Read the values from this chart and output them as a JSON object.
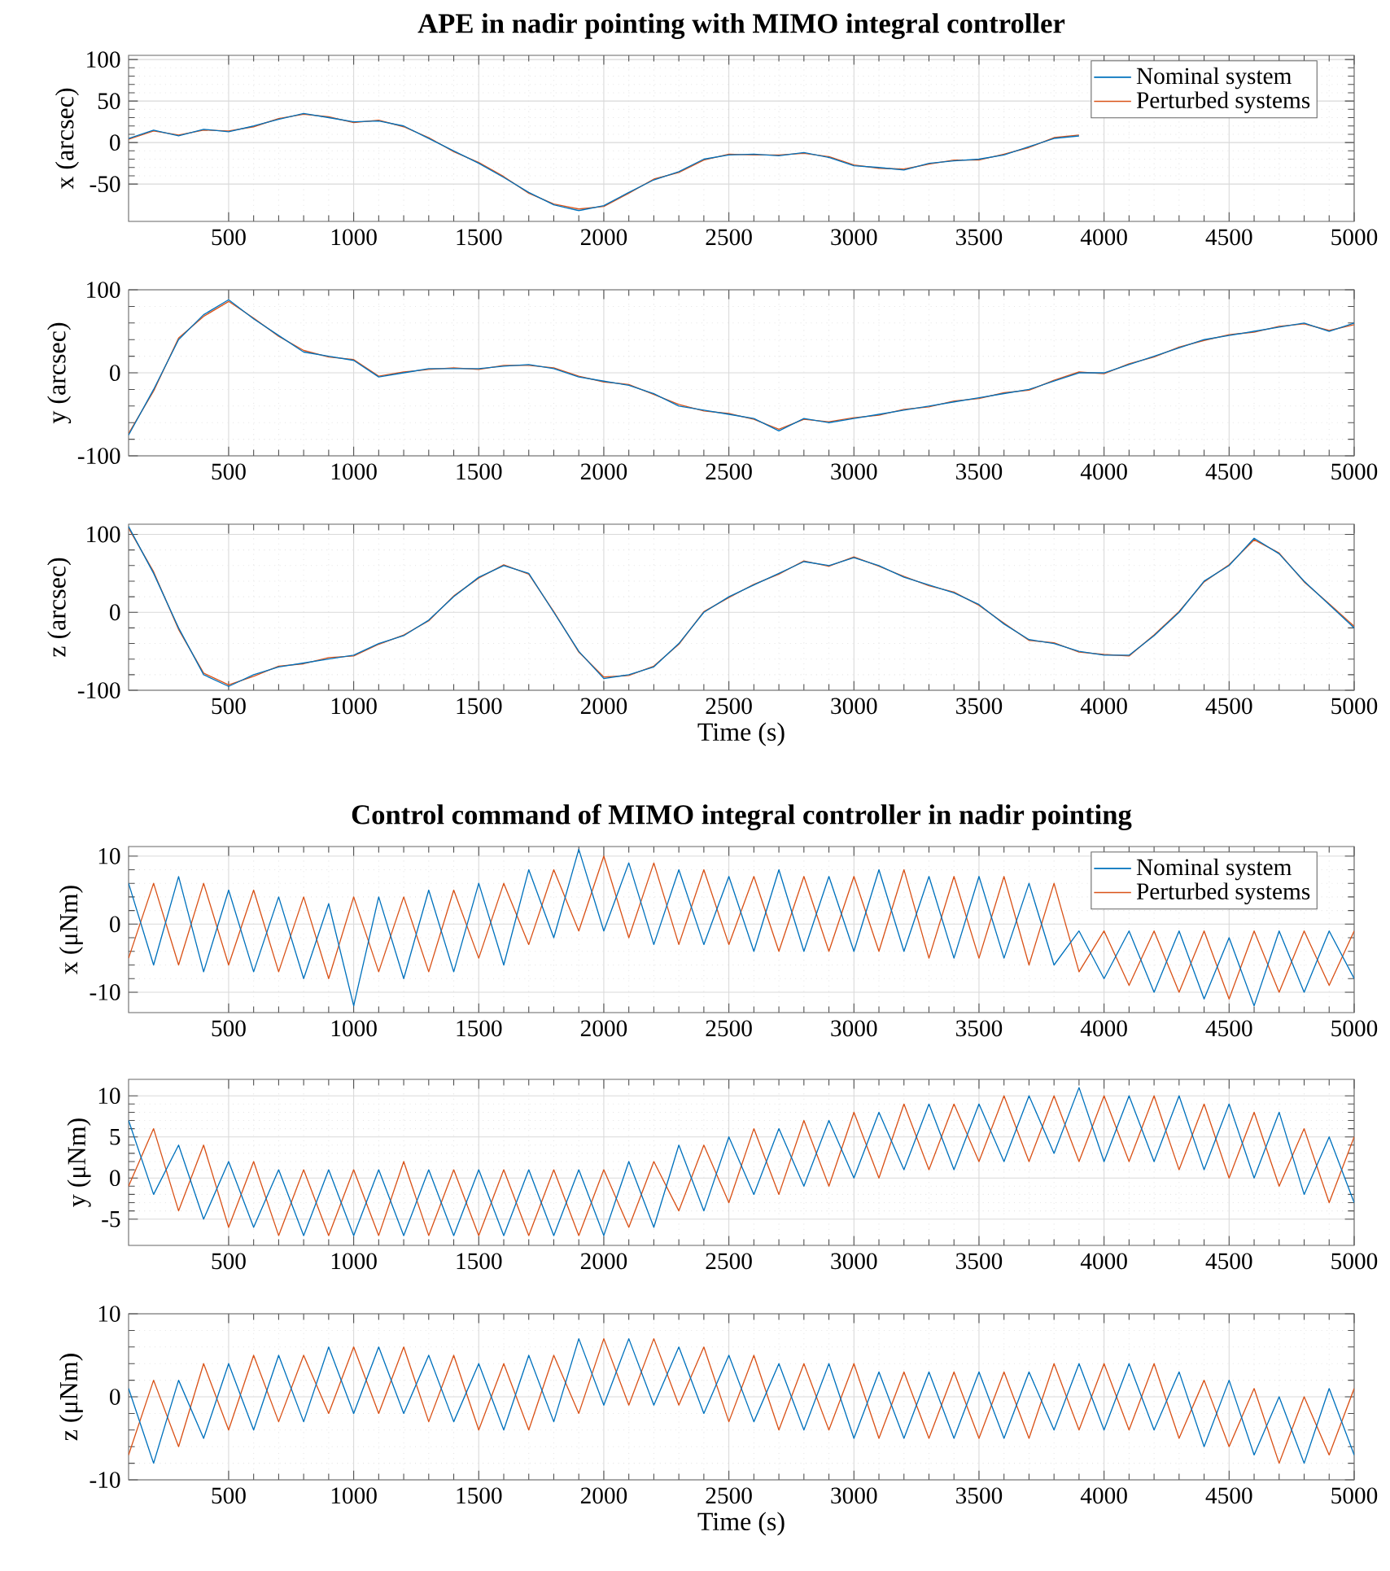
{
  "chart_data": [
    {
      "type": "line",
      "title": "APE in nadir pointing with MIMO integral controller",
      "ylabel": "x (arcsec)",
      "x": [
        100,
        200,
        300,
        400,
        500,
        600,
        700,
        800,
        900,
        1000,
        1100,
        1200,
        1300,
        1400,
        1500,
        1600,
        1700,
        1800,
        1900,
        2000,
        2100,
        2200,
        2300,
        2400,
        2500,
        2600,
        2700,
        2800,
        2900,
        3000,
        3100,
        3200,
        3300,
        3400,
        3500,
        3600,
        3700,
        3800,
        3900
      ],
      "xlim": [
        100,
        5000
      ],
      "ylim": [
        -95,
        105
      ],
      "xticks": [
        500,
        1000,
        1500,
        2000,
        2500,
        3000,
        3500,
        4000,
        4500,
        5000
      ],
      "yticks": [
        -50,
        0,
        50,
        100
      ],
      "grid": true,
      "legend": "top right",
      "series": [
        {
          "name": "Nominal system",
          "color": "#0072bd",
          "values": [
            5,
            15,
            8,
            16,
            13,
            20,
            28,
            35,
            30,
            25,
            26,
            20,
            5,
            -10,
            -25,
            -42,
            -60,
            -75,
            -82,
            -76,
            -60,
            -45,
            -35,
            -20,
            -15,
            -14,
            -16,
            -12,
            -18,
            -28,
            -30,
            -33,
            -25,
            -22,
            -20,
            -15,
            -5,
            5,
            8
          ]
        },
        {
          "name": "Perturbed systems",
          "color": "#d95319",
          "values": [
            4,
            14,
            9,
            15,
            14,
            19,
            29,
            34,
            31,
            24,
            27,
            19,
            6,
            -11,
            -24,
            -41,
            -61,
            -74,
            -80,
            -77,
            -61,
            -44,
            -36,
            -21,
            -14,
            -15,
            -15,
            -13,
            -17,
            -27,
            -31,
            -32,
            -26,
            -21,
            -21,
            -14,
            -6,
            6,
            9
          ]
        }
      ]
    },
    {
      "type": "line",
      "ylabel": "y (arcsec)",
      "x": [
        100,
        200,
        300,
        400,
        500,
        600,
        700,
        800,
        900,
        1000,
        1100,
        1200,
        1300,
        1400,
        1500,
        1600,
        1700,
        1800,
        1900,
        2000,
        2100,
        2200,
        2300,
        2400,
        2500,
        2600,
        2700,
        2800,
        2900,
        3000,
        3100,
        3200,
        3300,
        3400,
        3500,
        3600,
        3700,
        3800,
        3900,
        4000,
        4100,
        4200,
        4300,
        4400,
        4500,
        4600,
        4700,
        4800,
        4900,
        5000
      ],
      "xlim": [
        100,
        5000
      ],
      "ylim": [
        -100,
        100
      ],
      "xticks": [
        500,
        1000,
        1500,
        2000,
        2500,
        3000,
        3500,
        4000,
        4500,
        5000
      ],
      "yticks": [
        -100,
        0,
        100
      ],
      "grid": true,
      "series": [
        {
          "color": "#0072bd",
          "values": [
            -75,
            -20,
            40,
            70,
            88,
            65,
            45,
            25,
            20,
            15,
            -5,
            0,
            5,
            5,
            5,
            8,
            10,
            5,
            -5,
            -10,
            -15,
            -25,
            -40,
            -45,
            -50,
            -55,
            -70,
            -55,
            -60,
            -55,
            -50,
            -45,
            -40,
            -35,
            -30,
            -25,
            -20,
            -10,
            0,
            0,
            10,
            20,
            30,
            40,
            45,
            50,
            55,
            60,
            50,
            60
          ]
        },
        {
          "color": "#d95319",
          "values": [
            -73,
            -22,
            42,
            68,
            86,
            66,
            44,
            27,
            19,
            16,
            -4,
            1,
            4,
            6,
            4,
            9,
            9,
            6,
            -4,
            -11,
            -14,
            -26,
            -38,
            -46,
            -49,
            -56,
            -68,
            -56,
            -59,
            -54,
            -51,
            -44,
            -41,
            -34,
            -31,
            -24,
            -21,
            -9,
            1,
            -1,
            11,
            19,
            31,
            39,
            46,
            49,
            56,
            59,
            51,
            58
          ]
        }
      ]
    },
    {
      "type": "line",
      "ylabel": "z (arcsec)",
      "xlabel": "Time (s)",
      "x": [
        100,
        200,
        300,
        400,
        500,
        600,
        700,
        800,
        900,
        1000,
        1100,
        1200,
        1300,
        1400,
        1500,
        1600,
        1700,
        1800,
        1900,
        2000,
        2100,
        2200,
        2300,
        2400,
        2500,
        2600,
        2700,
        2800,
        2900,
        3000,
        3100,
        3200,
        3300,
        3400,
        3500,
        3600,
        3700,
        3800,
        3900,
        4000,
        4100,
        4200,
        4300,
        4400,
        4500,
        4600,
        4700,
        4800,
        4900,
        5000
      ],
      "xlim": [
        100,
        5000
      ],
      "ylim": [
        -100,
        113
      ],
      "xticks": [
        500,
        1000,
        1500,
        2000,
        2500,
        3000,
        3500,
        4000,
        4500,
        5000
      ],
      "yticks": [
        -100,
        0,
        100
      ],
      "grid": true,
      "series": [
        {
          "color": "#0072bd",
          "values": [
            110,
            50,
            -20,
            -80,
            -95,
            -80,
            -70,
            -65,
            -60,
            -55,
            -40,
            -30,
            -10,
            20,
            45,
            60,
            50,
            0,
            -50,
            -85,
            -80,
            -70,
            -40,
            0,
            20,
            35,
            50,
            65,
            60,
            70,
            60,
            45,
            35,
            25,
            10,
            -15,
            -35,
            -40,
            -50,
            -55,
            -55,
            -30,
            0,
            40,
            60,
            95,
            75,
            40,
            10,
            -20
          ]
        },
        {
          "color": "#d95319",
          "values": [
            108,
            52,
            -22,
            -78,
            -93,
            -82,
            -69,
            -66,
            -58,
            -56,
            -41,
            -29,
            -11,
            21,
            44,
            61,
            49,
            1,
            -51,
            -83,
            -81,
            -69,
            -41,
            1,
            19,
            36,
            49,
            66,
            59,
            71,
            59,
            46,
            34,
            26,
            9,
            -14,
            -36,
            -39,
            -51,
            -54,
            -56,
            -29,
            1,
            39,
            61,
            93,
            76,
            39,
            11,
            -18
          ]
        }
      ]
    },
    {
      "type": "line",
      "title": "Control command of MIMO integral controller in nadir pointing",
      "ylabel": "x (μNm)",
      "x": [
        100,
        200,
        300,
        400,
        500,
        600,
        700,
        800,
        900,
        1000,
        1100,
        1200,
        1300,
        1400,
        1500,
        1600,
        1700,
        1800,
        1900,
        2000,
        2100,
        2200,
        2300,
        2400,
        2500,
        2600,
        2700,
        2800,
        2900,
        3000,
        3100,
        3200,
        3300,
        3400,
        3500,
        3600,
        3700,
        3800,
        3900,
        4000,
        4100,
        4200,
        4300,
        4400,
        4500,
        4600,
        4700,
        4800,
        4900,
        5000
      ],
      "xlim": [
        100,
        5000
      ],
      "ylim": [
        -13,
        11.4
      ],
      "xticks": [
        500,
        1000,
        1500,
        2000,
        2500,
        3000,
        3500,
        4000,
        4500,
        5000
      ],
      "yticks": [
        -10,
        0,
        10
      ],
      "grid": true,
      "legend": "top right",
      "series": [
        {
          "name": "Nominal system",
          "color": "#0072bd",
          "values": [
            6,
            -6,
            7,
            -7,
            5,
            -7,
            4,
            -8,
            3,
            -12,
            4,
            -8,
            5,
            -7,
            6,
            -6,
            8,
            -2,
            11,
            -1,
            9,
            -3,
            8,
            -3,
            7,
            -4,
            8,
            -4,
            7,
            -4,
            8,
            -4,
            7,
            -5,
            7,
            -5,
            6,
            -6,
            -1,
            -8,
            -1,
            -10,
            -1,
            -11,
            -2,
            -12,
            -1,
            -10,
            -1,
            -8
          ]
        },
        {
          "name": "Perturbed systems",
          "color": "#d95319",
          "values": [
            -5,
            6,
            -6,
            6,
            -6,
            5,
            -7,
            4,
            -8,
            4,
            -7,
            4,
            -7,
            5,
            -5,
            6,
            -3,
            8,
            -1,
            10,
            -2,
            9,
            -3,
            8,
            -3,
            7,
            -4,
            7,
            -4,
            7,
            -4,
            8,
            -5,
            7,
            -5,
            7,
            -6,
            6,
            -7,
            -1,
            -9,
            -1,
            -10,
            -1,
            -11,
            -1,
            -10,
            -1,
            -9,
            -1
          ]
        }
      ]
    },
    {
      "type": "line",
      "ylabel": "y (μNm)",
      "x": [
        100,
        200,
        300,
        400,
        500,
        600,
        700,
        800,
        900,
        1000,
        1100,
        1200,
        1300,
        1400,
        1500,
        1600,
        1700,
        1800,
        1900,
        2000,
        2100,
        2200,
        2300,
        2400,
        2500,
        2600,
        2700,
        2800,
        2900,
        3000,
        3100,
        3200,
        3300,
        3400,
        3500,
        3600,
        3700,
        3800,
        3900,
        4000,
        4100,
        4200,
        4300,
        4400,
        4500,
        4600,
        4700,
        4800,
        4900,
        5000
      ],
      "xlim": [
        100,
        5000
      ],
      "ylim": [
        -8.2,
        12
      ],
      "xticks": [
        500,
        1000,
        1500,
        2000,
        2500,
        3000,
        3500,
        4000,
        4500,
        5000
      ],
      "yticks": [
        -5,
        0,
        5,
        10
      ],
      "grid": true,
      "series": [
        {
          "color": "#0072bd",
          "values": [
            7,
            -2,
            4,
            -5,
            2,
            -6,
            1,
            -7,
            1,
            -7,
            1,
            -7,
            1,
            -7,
            1,
            -7,
            1,
            -7,
            1,
            -7,
            2,
            -6,
            4,
            -4,
            5,
            -2,
            6,
            -1,
            7,
            0,
            8,
            1,
            9,
            1,
            9,
            2,
            10,
            3,
            11,
            2,
            10,
            2,
            10,
            1,
            9,
            0,
            8,
            -2,
            5,
            -3
          ]
        },
        {
          "color": "#d95319",
          "values": [
            -1,
            6,
            -4,
            4,
            -6,
            2,
            -7,
            1,
            -7,
            1,
            -7,
            2,
            -7,
            1,
            -7,
            1,
            -7,
            1,
            -7,
            1,
            -6,
            2,
            -4,
            4,
            -3,
            6,
            -2,
            7,
            -1,
            8,
            0,
            9,
            1,
            9,
            2,
            10,
            2,
            10,
            2,
            10,
            2,
            10,
            1,
            9,
            0,
            8,
            -1,
            6,
            -3,
            5
          ]
        }
      ]
    },
    {
      "type": "line",
      "ylabel": "z (μNm)",
      "xlabel": "Time (s)",
      "x": [
        100,
        200,
        300,
        400,
        500,
        600,
        700,
        800,
        900,
        1000,
        1100,
        1200,
        1300,
        1400,
        1500,
        1600,
        1700,
        1800,
        1900,
        2000,
        2100,
        2200,
        2300,
        2400,
        2500,
        2600,
        2700,
        2800,
        2900,
        3000,
        3100,
        3200,
        3300,
        3400,
        3500,
        3600,
        3700,
        3800,
        3900,
        4000,
        4100,
        4200,
        4300,
        4400,
        4500,
        4600,
        4700,
        4800,
        4900,
        5000
      ],
      "xlim": [
        100,
        5000
      ],
      "ylim": [
        -10,
        10
      ],
      "xticks": [
        500,
        1000,
        1500,
        2000,
        2500,
        3000,
        3500,
        4000,
        4500,
        5000
      ],
      "yticks": [
        -10,
        0,
        10
      ],
      "grid": true,
      "series": [
        {
          "color": "#0072bd",
          "values": [
            1,
            -8,
            2,
            -5,
            4,
            -4,
            5,
            -3,
            6,
            -2,
            6,
            -2,
            5,
            -3,
            4,
            -4,
            5,
            -3,
            7,
            -1,
            7,
            -1,
            6,
            -2,
            5,
            -3,
            4,
            -4,
            4,
            -5,
            3,
            -5,
            3,
            -5,
            3,
            -5,
            3,
            -4,
            4,
            -4,
            4,
            -4,
            3,
            -6,
            2,
            -7,
            0,
            -8,
            1,
            -7
          ]
        },
        {
          "color": "#d95319",
          "values": [
            -7,
            2,
            -6,
            4,
            -4,
            5,
            -3,
            5,
            -2,
            6,
            -2,
            6,
            -3,
            5,
            -4,
            4,
            -4,
            5,
            -2,
            7,
            -1,
            7,
            -1,
            6,
            -3,
            5,
            -4,
            4,
            -4,
            4,
            -5,
            3,
            -5,
            3,
            -5,
            3,
            -5,
            4,
            -4,
            4,
            -4,
            4,
            -5,
            2,
            -6,
            1,
            -8,
            0,
            -7,
            1
          ]
        }
      ]
    }
  ]
}
